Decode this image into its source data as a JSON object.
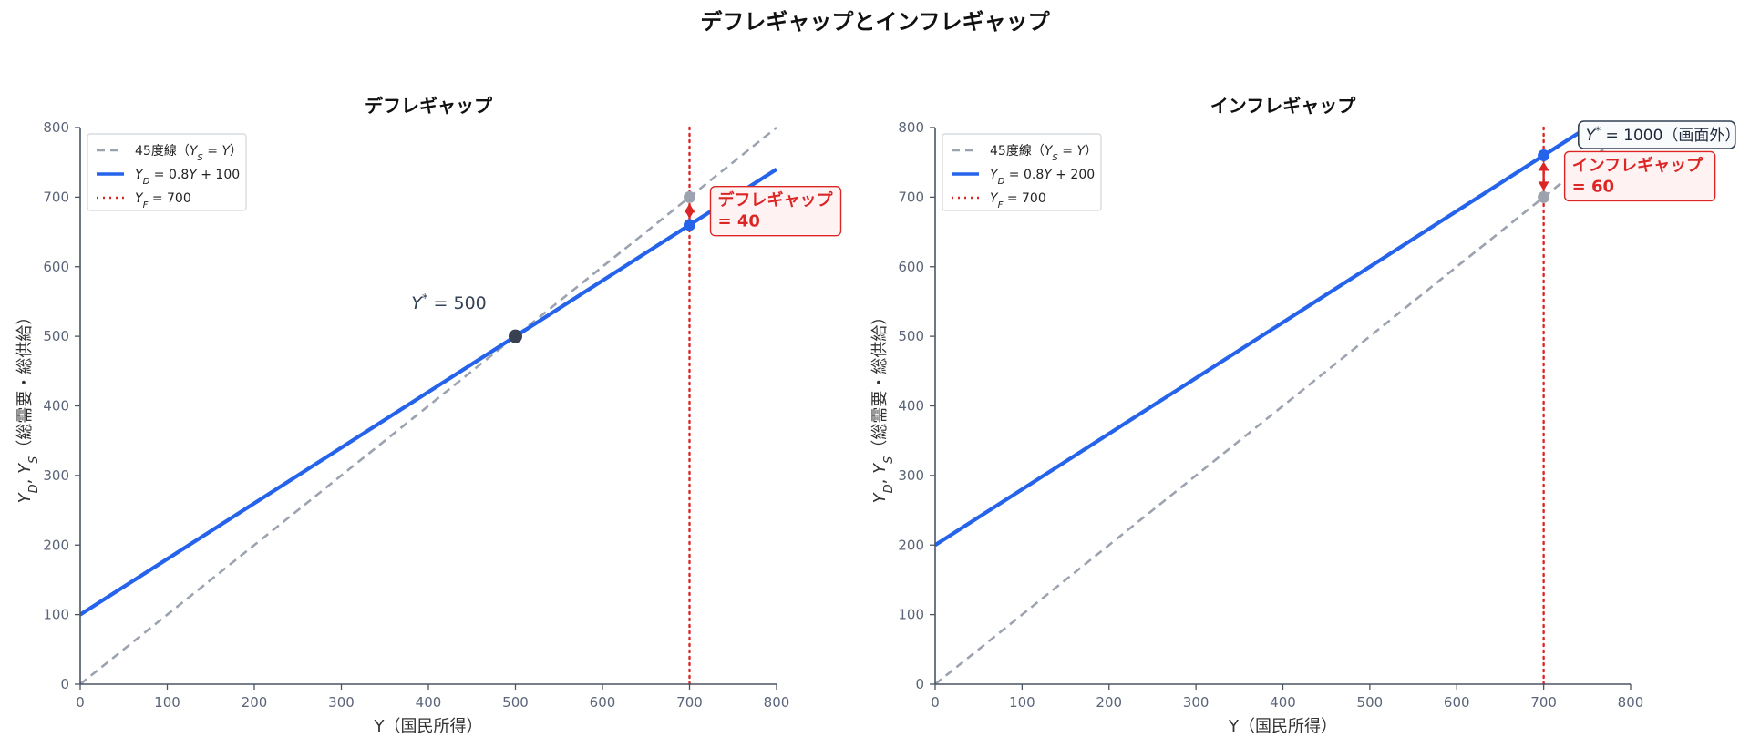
{
  "title": "デフレギャップとインフレギャップ",
  "colors": {
    "ad": "#2563eb",
    "diag": "#9ca3af",
    "yf": "#dc2626",
    "eq": "#374151",
    "axis": "#4b5563",
    "gap_fill": "#fef2f2"
  },
  "chart_data": [
    {
      "type": "line",
      "title": "デフレギャップ",
      "xlabel": "Y（国民所得）",
      "ylabel": "Y_D, Y_S（総需要・総供給）",
      "xlim": [
        0,
        800
      ],
      "ylim": [
        0,
        800
      ],
      "xticks": [
        0,
        100,
        200,
        300,
        400,
        500,
        600,
        700,
        800
      ],
      "yticks": [
        0,
        100,
        200,
        300,
        400,
        500,
        600,
        700,
        800
      ],
      "legend_position": "upper-left",
      "series": [
        {
          "name": "45度線（Y_S = Y）",
          "style": "dashed",
          "x": [
            0,
            800
          ],
          "y": [
            0,
            800
          ]
        },
        {
          "name": "Y_D = 0.8Y + 100",
          "style": "solid",
          "x": [
            0,
            800
          ],
          "y": [
            100,
            740
          ]
        },
        {
          "name": "Y_F = 700",
          "style": "dotted",
          "x": [
            700,
            700
          ],
          "y": [
            0,
            800
          ]
        }
      ],
      "points": [
        {
          "label": "equilibrium",
          "x": 500,
          "y": 500
        },
        {
          "label": "supply_at_yf",
          "x": 700,
          "y": 700
        },
        {
          "label": "demand_at_yf",
          "x": 700,
          "y": 660
        }
      ],
      "eq_label": "Y* = 500",
      "gap": {
        "from": 700,
        "to": 660,
        "line1": "デフレギャップ",
        "line2": "= 40"
      }
    },
    {
      "type": "line",
      "title": "インフレギャップ",
      "xlabel": "Y（国民所得）",
      "ylabel": "Y_D, Y_S（総需要・総供給）",
      "xlim": [
        0,
        800
      ],
      "ylim": [
        0,
        800
      ],
      "xticks": [
        0,
        100,
        200,
        300,
        400,
        500,
        600,
        700,
        800
      ],
      "yticks": [
        0,
        100,
        200,
        300,
        400,
        500,
        600,
        700,
        800
      ],
      "legend_position": "upper-left",
      "series": [
        {
          "name": "45度線（Y_S = Y）",
          "style": "dashed",
          "x": [
            0,
            800
          ],
          "y": [
            0,
            800
          ]
        },
        {
          "name": "Y_D = 0.8Y + 200",
          "style": "solid",
          "x": [
            0,
            800
          ],
          "y": [
            200,
            840
          ]
        },
        {
          "name": "Y_F = 700",
          "style": "dotted",
          "x": [
            700,
            700
          ],
          "y": [
            0,
            800
          ]
        }
      ],
      "points": [
        {
          "label": "supply_at_yf",
          "x": 700,
          "y": 700
        },
        {
          "label": "demand_at_yf",
          "x": 700,
          "y": 760
        }
      ],
      "offscreen_label": "Y* = 1000（画面外）",
      "gap": {
        "from": 700,
        "to": 760,
        "line1": "インフレギャップ",
        "line2": "= 60"
      }
    }
  ]
}
